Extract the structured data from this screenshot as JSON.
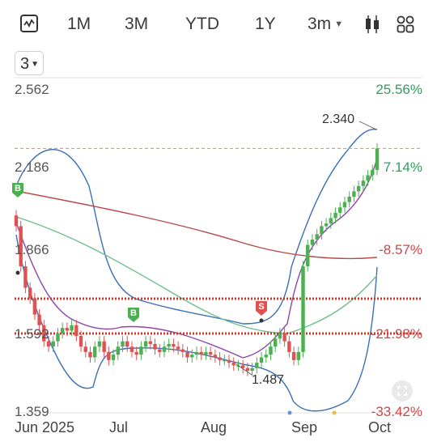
{
  "toolbar": {
    "line_icon": "line-chart-icon",
    "periods": [
      "1M",
      "3M",
      "YTD",
      "1Y"
    ],
    "interval": "3m",
    "candle_icon": "candlestick-icon",
    "grid_icon": "grid-icon"
  },
  "selector": {
    "value": "3"
  },
  "price_labels": [
    "2.562",
    "2.186",
    "1.866",
    "1.592",
    "1.359"
  ],
  "percent_labels": [
    "25.56%",
    "7.14%",
    "-8.57%",
    "-21.98%",
    "-33.42%"
  ],
  "x_labels": [
    "Jun 2025",
    "Jul",
    "Aug",
    "Sep",
    "Oct"
  ],
  "annotations": {
    "high_label": "2.340",
    "low_label": "1.487",
    "buy_marker": "B",
    "sell_marker": "S"
  },
  "colors": {
    "up": "#4caf50",
    "down": "#e05252",
    "bollinger": "#3b6fb6",
    "ma_red": "#b84a4a",
    "ma_green": "#6cbf8a",
    "ma_purple": "#8e44ad",
    "dashed_orange": "#e8a04a",
    "dotted_red": "#c0392b",
    "pct_up": "#2e9e5b",
    "pct_down": "#d04545"
  },
  "chart_data": {
    "type": "candlestick",
    "x": [
      "Jun 2025",
      "Jul",
      "Aug",
      "Sep",
      "Oct"
    ],
    "y_price_ticks": [
      2.562,
      2.186,
      1.866,
      1.592,
      1.359
    ],
    "y_percent_ticks": [
      25.56,
      7.14,
      -8.57,
      -21.98,
      -33.42
    ],
    "close_series": [
      2.05,
      1.9,
      1.82,
      1.78,
      1.72,
      1.68,
      1.62,
      1.6,
      1.62,
      1.65,
      1.67,
      1.66,
      1.68,
      1.64,
      1.6,
      1.58,
      1.56,
      1.6,
      1.62,
      1.58,
      1.55,
      1.57,
      1.6,
      1.62,
      1.6,
      1.58,
      1.57,
      1.6,
      1.62,
      1.61,
      1.59,
      1.58,
      1.6,
      1.61,
      1.6,
      1.59,
      1.58,
      1.56,
      1.57,
      1.58,
      1.57,
      1.58,
      1.57,
      1.56,
      1.55,
      1.55,
      1.54,
      1.53,
      1.53,
      1.52,
      1.51,
      1.52,
      1.54,
      1.56,
      1.57,
      1.6,
      1.63,
      1.65,
      1.62,
      1.58,
      1.55,
      1.58,
      1.9,
      1.98,
      2.0,
      2.02,
      2.05,
      2.06,
      2.08,
      2.1,
      2.12,
      2.14,
      2.16,
      2.18,
      2.2,
      2.22,
      2.24,
      2.26,
      2.34
    ],
    "high_marker": 2.34,
    "low_marker": 1.487,
    "reference_level": 2.34
  }
}
